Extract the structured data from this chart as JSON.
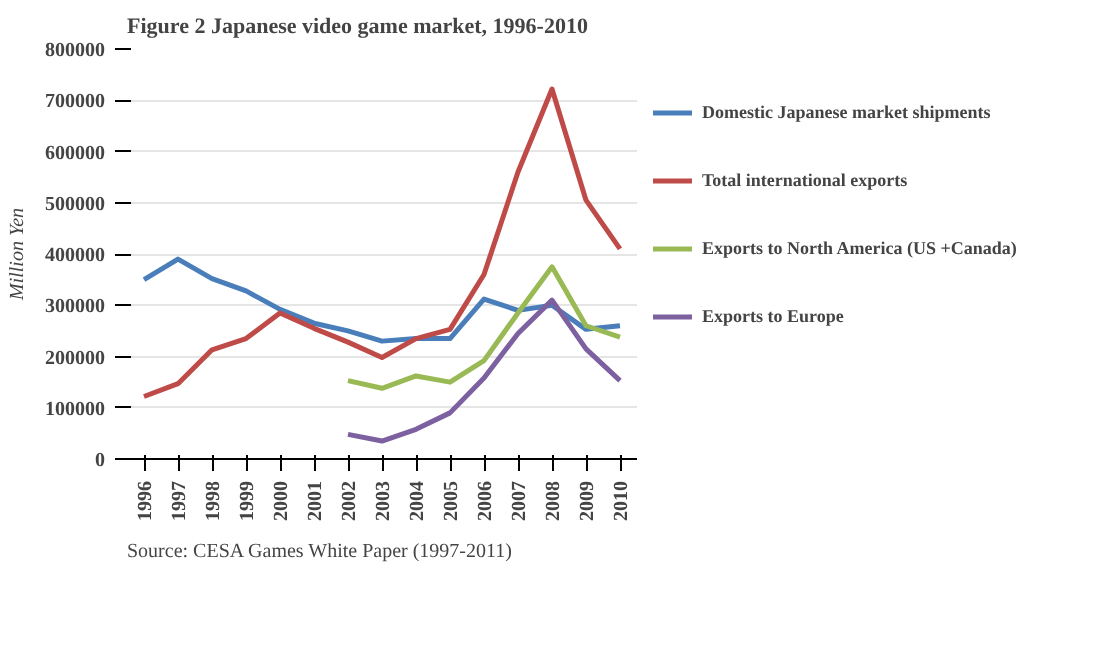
{
  "chart_data": {
    "type": "line",
    "title": "Figure 2 Japanese video game market, 1996-2010",
    "ylabel": "Million Yen",
    "categories": [
      "1996",
      "1997",
      "1998",
      "1999",
      "2000",
      "2001",
      "2002",
      "2003",
      "2004",
      "2005",
      "2006",
      "2007",
      "2008",
      "2009",
      "2010"
    ],
    "series": [
      {
        "name": "Domestic Japanese market shipments",
        "color": "#4a7ebb",
        "values": [
          350000,
          390000,
          352000,
          328000,
          292000,
          265000,
          250000,
          230000,
          235000,
          235000,
          312000,
          290000,
          300000,
          253000,
          260000
        ]
      },
      {
        "name": "Total international exports",
        "color": "#be4b48",
        "values": [
          122000,
          147000,
          213000,
          235000,
          285000,
          255000,
          228000,
          198000,
          235000,
          253000,
          360000,
          560000,
          722000,
          505000,
          410000
        ]
      },
      {
        "name": "Exports to North America (US +Canada)",
        "color": "#98b954",
        "values": [
          null,
          null,
          null,
          null,
          null,
          null,
          153000,
          138000,
          162000,
          150000,
          192000,
          285000,
          375000,
          260000,
          238000
        ]
      },
      {
        "name": "Exports to Europe",
        "color": "#7d60a0",
        "values": [
          null,
          null,
          null,
          null,
          null,
          null,
          48000,
          35000,
          58000,
          90000,
          158000,
          245000,
          310000,
          215000,
          153000
        ]
      }
    ],
    "ylim": [
      0,
      800000
    ],
    "yticks": [
      0,
      100000,
      200000,
      300000,
      400000,
      500000,
      600000,
      700000,
      800000
    ],
    "grid": "y",
    "legend": "right",
    "marker": "none",
    "line_style": "solid",
    "annotations": [
      "Source: CESA Games White Paper (1997-2011)"
    ]
  }
}
